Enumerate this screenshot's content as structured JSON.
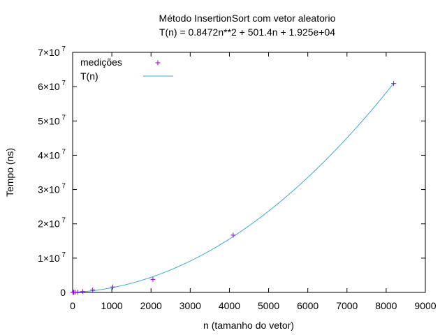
{
  "chart_data": {
    "type": "scatter",
    "title": "Método InsertionSort com vetor aleatorio",
    "subtitle": "T(n) = 0.8472n**2 + 501.4n + 1.925e+04",
    "xlabel": "n (tamanho do vetor)",
    "ylabel": "Tempo (ns)",
    "xlim": [
      0,
      9000
    ],
    "ylim": [
      0,
      70000000
    ],
    "x_ticks": [
      "0",
      "1000",
      "2000",
      "3000",
      "4000",
      "5000",
      "6000",
      "7000",
      "8000",
      "9000"
    ],
    "y_ticks": [
      {
        "mantissa": "0",
        "exp": ""
      },
      {
        "mantissa": "1×10",
        "exp": "7"
      },
      {
        "mantissa": "2×10",
        "exp": "7"
      },
      {
        "mantissa": "3×10",
        "exp": "7"
      },
      {
        "mantissa": "4×10",
        "exp": "7"
      },
      {
        "mantissa": "5×10",
        "exp": "7"
      },
      {
        "mantissa": "6×10",
        "exp": "7"
      },
      {
        "mantissa": "7×10",
        "exp": "7"
      }
    ],
    "grid": false,
    "legend_position": "top-left",
    "series": [
      {
        "name": "medições",
        "kind": "points",
        "marker": "plus",
        "color": "#9400d3",
        "x": [
          8,
          16,
          32,
          64,
          128,
          256,
          512,
          1024,
          2048,
          4096,
          8192
        ],
        "y": [
          25000,
          30000,
          40000,
          60000,
          100000,
          250000,
          700000,
          1600000,
          3800000,
          16700000,
          60900000
        ]
      },
      {
        "name": "T(n)",
        "kind": "fit",
        "color": "#3fa7e0",
        "coefficients": {
          "a": 0.8472,
          "b": 501.4,
          "c": 19250
        }
      }
    ]
  }
}
